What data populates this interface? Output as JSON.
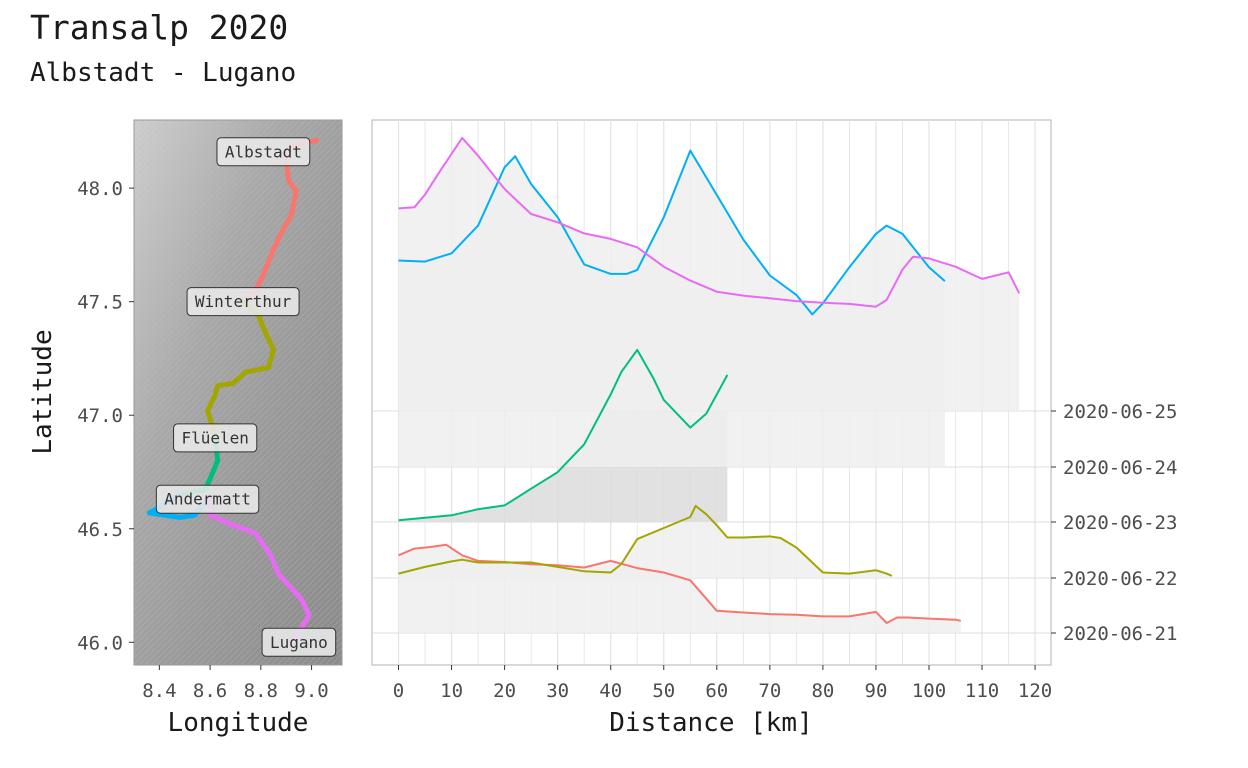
{
  "title": "Transalp 2020",
  "subtitle": "Albstadt - Lugano",
  "chart_data": [
    {
      "type": "map",
      "xlabel": "Longitude",
      "ylabel": "Latitude",
      "xlim": [
        8.3,
        9.12
      ],
      "ylim": [
        45.9,
        48.3
      ],
      "x_ticks": [
        "8.4",
        "8.6",
        "8.8",
        "9.0"
      ],
      "x_tick_values": [
        8.4,
        8.6,
        8.8,
        9.0
      ],
      "y_ticks": [
        "46.0",
        "46.5",
        "47.0",
        "47.5",
        "48.0"
      ],
      "y_tick_values": [
        46.0,
        46.5,
        47.0,
        47.5,
        48.0
      ],
      "places": [
        {
          "name": "Albstadt",
          "lon": 8.81,
          "lat": 48.16
        },
        {
          "name": "Winterthur",
          "lon": 8.73,
          "lat": 47.5
        },
        {
          "name": "Flüelen",
          "lon": 8.62,
          "lat": 46.9
        },
        {
          "name": "Andermatt",
          "lon": 8.59,
          "lat": 46.63
        },
        {
          "name": "Lugano",
          "lon": 8.95,
          "lat": 46.0
        }
      ],
      "stages": [
        {
          "date": "2020-06-21",
          "color": "#F8766D",
          "track": [
            [
              9.02,
              48.21
            ],
            [
              8.97,
              48.2
            ],
            [
              8.92,
              48.18
            ],
            [
              8.9,
              48.13
            ],
            [
              8.91,
              48.03
            ],
            [
              8.94,
              47.99
            ],
            [
              8.92,
              47.88
            ],
            [
              8.88,
              47.8
            ],
            [
              8.85,
              47.73
            ],
            [
              8.81,
              47.62
            ],
            [
              8.78,
              47.55
            ],
            [
              8.73,
              47.5
            ]
          ]
        },
        {
          "date": "2020-06-22",
          "color": "#A3A500",
          "track": [
            [
              8.73,
              47.5
            ],
            [
              8.79,
              47.44
            ],
            [
              8.82,
              47.36
            ],
            [
              8.85,
              47.29
            ],
            [
              8.83,
              47.21
            ],
            [
              8.74,
              47.19
            ],
            [
              8.69,
              47.14
            ],
            [
              8.63,
              47.13
            ],
            [
              8.62,
              47.09
            ],
            [
              8.59,
              47.02
            ],
            [
              8.61,
              46.95
            ],
            [
              8.62,
              46.9
            ]
          ]
        },
        {
          "date": "2020-06-23",
          "color": "#00BF7D",
          "track": [
            [
              8.62,
              46.9
            ],
            [
              8.63,
              46.8
            ],
            [
              8.6,
              46.72
            ],
            [
              8.58,
              46.67
            ],
            [
              8.52,
              46.66
            ],
            [
              8.48,
              46.65
            ]
          ]
        },
        {
          "date": "2020-06-24",
          "color": "#00B0F6",
          "track": [
            [
              8.48,
              46.65
            ],
            [
              8.41,
              46.6
            ],
            [
              8.36,
              46.57
            ],
            [
              8.48,
              46.55
            ],
            [
              8.54,
              46.56
            ],
            [
              8.58,
              46.61
            ],
            [
              8.59,
              46.63
            ]
          ]
        },
        {
          "date": "2020-06-25",
          "color": "#E76BF3",
          "track": [
            [
              8.59,
              46.63
            ],
            [
              8.6,
              46.56
            ],
            [
              8.68,
              46.52
            ],
            [
              8.78,
              46.48
            ],
            [
              8.84,
              46.38
            ],
            [
              8.87,
              46.3
            ],
            [
              8.96,
              46.19
            ],
            [
              8.99,
              46.12
            ],
            [
              8.94,
              46.02
            ],
            [
              8.9,
              45.99
            ]
          ]
        }
      ]
    },
    {
      "type": "ridgeline",
      "xlabel": "Distance [km]",
      "xlim": [
        -5,
        123
      ],
      "x_ticks": [
        0,
        10,
        20,
        30,
        40,
        50,
        60,
        70,
        80,
        90,
        100,
        110,
        120
      ],
      "y_ticks": [
        "2020-06-21",
        "2020-06-22",
        "2020-06-23",
        "2020-06-24",
        "2020-06-25"
      ],
      "series": [
        {
          "name": "2020-06-21",
          "color": "#F8766D",
          "fill": "#EFEFEF",
          "x": [
            0,
            3,
            6,
            9,
            12,
            15,
            20,
            25,
            30,
            35,
            40,
            45,
            50,
            55,
            60,
            65,
            70,
            75,
            80,
            85,
            90,
            92,
            94,
            96,
            100,
            105,
            106
          ],
          "y": [
            1.4,
            1.52,
            1.55,
            1.59,
            1.4,
            1.3,
            1.28,
            1.24,
            1.22,
            1.18,
            1.3,
            1.17,
            1.09,
            0.95,
            0.4,
            0.37,
            0.34,
            0.33,
            0.3,
            0.3,
            0.38,
            0.18,
            0.28,
            0.28,
            0.26,
            0.24,
            0.22
          ]
        },
        {
          "name": "2020-06-22",
          "color": "#A3A500",
          "fill": "#EFEFEF",
          "x": [
            0,
            5,
            10,
            12,
            15,
            20,
            25,
            30,
            35,
            40,
            42,
            45,
            50,
            55,
            56,
            58,
            60,
            62,
            65,
            70,
            72,
            75,
            80,
            85,
            90,
            92,
            93
          ],
          "y": [
            0.08,
            0.2,
            0.3,
            0.33,
            0.28,
            0.28,
            0.28,
            0.2,
            0.12,
            0.1,
            0.25,
            0.7,
            0.9,
            1.1,
            1.3,
            1.15,
            0.95,
            0.73,
            0.73,
            0.75,
            0.72,
            0.55,
            0.1,
            0.08,
            0.14,
            0.08,
            0.04
          ]
        },
        {
          "name": "2020-06-23",
          "color": "#00BF7D",
          "fill": "#DCDCDC",
          "x": [
            0,
            10,
            15,
            20,
            25,
            30,
            35,
            40,
            42,
            45,
            48,
            50,
            55,
            58,
            62
          ],
          "y": [
            0.03,
            0.12,
            0.23,
            0.3,
            0.6,
            0.9,
            1.4,
            2.3,
            2.7,
            3.1,
            2.6,
            2.2,
            1.7,
            1.95,
            2.65
          ]
        },
        {
          "name": "2020-06-24",
          "color": "#00B0F6",
          "fill": "#EFEFEF",
          "x": [
            0,
            5,
            10,
            15,
            20,
            22,
            25,
            30,
            35,
            40,
            43,
            45,
            50,
            55,
            60,
            65,
            70,
            75,
            78,
            80,
            85,
            90,
            92,
            95,
            100,
            103
          ],
          "y": [
            3.72,
            3.7,
            3.85,
            4.35,
            5.4,
            5.6,
            5.1,
            4.5,
            3.65,
            3.48,
            3.48,
            3.55,
            4.5,
            5.7,
            4.9,
            4.1,
            3.45,
            3.1,
            2.75,
            2.95,
            3.6,
            4.2,
            4.35,
            4.2,
            3.6,
            3.35
          ]
        },
        {
          "name": "2020-06-25",
          "color": "#E76BF3",
          "fill": "#EFEFEF",
          "x": [
            0,
            3,
            5,
            8,
            12,
            15,
            20,
            25,
            30,
            35,
            40,
            45,
            50,
            55,
            60,
            65,
            70,
            75,
            80,
            85,
            90,
            92,
            95,
            97,
            100,
            105,
            110,
            115,
            117
          ],
          "y": [
            3.65,
            3.67,
            3.9,
            4.35,
            4.92,
            4.6,
            4.0,
            3.55,
            3.4,
            3.2,
            3.1,
            2.95,
            2.6,
            2.35,
            2.15,
            2.08,
            2.03,
            1.98,
            1.95,
            1.93,
            1.88,
            2.0,
            2.55,
            2.78,
            2.75,
            2.6,
            2.38,
            2.5,
            2.12
          ]
        }
      ]
    }
  ]
}
